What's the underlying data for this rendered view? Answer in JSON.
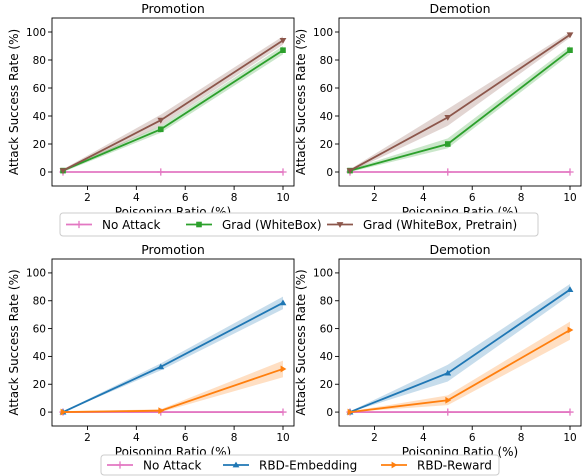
{
  "chart_data": [
    {
      "type": "line",
      "title": "Promotion",
      "xlabel": "Poisoning Ratio (%)",
      "ylabel": "Attack Success Rate (%)",
      "x": [
        1,
        5,
        10
      ],
      "xticks": [
        2,
        4,
        6,
        8,
        10
      ],
      "yticks": [
        0,
        20,
        40,
        60,
        80,
        100
      ],
      "xlim": [
        0.55,
        10.45
      ],
      "ylim": [
        -10,
        110
      ],
      "series": [
        {
          "name": "No Attack",
          "values": [
            0,
            0,
            0
          ],
          "band": [
            [
              0,
              0
            ],
            [
              0,
              0
            ],
            [
              0,
              0
            ]
          ],
          "color": "#e377c2",
          "marker": "plus"
        },
        {
          "name": "Grad (WhiteBox)",
          "values": [
            1,
            30.5,
            87
          ],
          "band": [
            [
              0,
              2
            ],
            [
              28,
              33
            ],
            [
              84,
              90
            ]
          ],
          "color": "#2ca02c",
          "marker": "square"
        },
        {
          "name": "Grad (WhiteBox, Pretrain)",
          "values": [
            1,
            37,
            94
          ],
          "band": [
            [
              0,
              2
            ],
            [
              33,
              41
            ],
            [
              91,
              97
            ]
          ],
          "color": "#8c564b",
          "marker": "tri-down"
        }
      ]
    },
    {
      "type": "line",
      "title": "Demotion",
      "xlabel": "Poisoning Ratio (%)",
      "ylabel": "Attack Success Rate (%)",
      "x": [
        1,
        5,
        10
      ],
      "xticks": [
        2,
        4,
        6,
        8,
        10
      ],
      "yticks": [
        0,
        20,
        40,
        60,
        80,
        100
      ],
      "xlim": [
        0.55,
        10.45
      ],
      "ylim": [
        -10,
        110
      ],
      "series": [
        {
          "name": "No Attack",
          "values": [
            0,
            0,
            0
          ],
          "band": [
            [
              0,
              0
            ],
            [
              0,
              0
            ],
            [
              0,
              0
            ]
          ],
          "color": "#e377c2",
          "marker": "plus"
        },
        {
          "name": "Grad (WhiteBox)",
          "values": [
            1,
            20,
            87
          ],
          "band": [
            [
              0,
              2
            ],
            [
              17,
              24
            ],
            [
              84,
              90
            ]
          ],
          "color": "#2ca02c",
          "marker": "square"
        },
        {
          "name": "Grad (WhiteBox, Pretrain)",
          "values": [
            1,
            39,
            98
          ],
          "band": [
            [
              0,
              2
            ],
            [
              33,
              45
            ],
            [
              96,
              100
            ]
          ],
          "color": "#8c564b",
          "marker": "tri-down"
        }
      ]
    },
    {
      "type": "line",
      "title": "Promotion",
      "xlabel": "Poisoning Ratio (%)",
      "ylabel": "Attack Success Rate (%)",
      "x": [
        1,
        5,
        10
      ],
      "xticks": [
        2,
        4,
        6,
        8,
        10
      ],
      "yticks": [
        0,
        20,
        40,
        60,
        80,
        100
      ],
      "xlim": [
        0.55,
        10.45
      ],
      "ylim": [
        -10,
        110
      ],
      "series": [
        {
          "name": "No Attack",
          "values": [
            0,
            0,
            0
          ],
          "band": [
            [
              0,
              0
            ],
            [
              0,
              0
            ],
            [
              0,
              0
            ]
          ],
          "color": "#e377c2",
          "marker": "plus"
        },
        {
          "name": "RBD-Embedding",
          "values": [
            0,
            32.5,
            78.5
          ],
          "band": [
            [
              0,
              0.5
            ],
            [
              30,
              35
            ],
            [
              74,
              83
            ]
          ],
          "color": "#1f77b4",
          "marker": "tri-up"
        },
        {
          "name": "RBD-Reward",
          "values": [
            0,
            1,
            31
          ],
          "band": [
            [
              0,
              0.5
            ],
            [
              0,
              2
            ],
            [
              25,
              37
            ]
          ],
          "color": "#ff7f0e",
          "marker": "tri-right"
        }
      ]
    },
    {
      "type": "line",
      "title": "Demotion",
      "xlabel": "Poisoning Ratio (%)",
      "ylabel": "Attack Success Rate (%)",
      "x": [
        1,
        5,
        10
      ],
      "xticks": [
        2,
        4,
        6,
        8,
        10
      ],
      "yticks": [
        0,
        20,
        40,
        60,
        80,
        100
      ],
      "xlim": [
        0.55,
        10.45
      ],
      "ylim": [
        -10,
        110
      ],
      "series": [
        {
          "name": "No Attack",
          "values": [
            0,
            0,
            0
          ],
          "band": [
            [
              0,
              0
            ],
            [
              0,
              0
            ],
            [
              0,
              0
            ]
          ],
          "color": "#e377c2",
          "marker": "plus"
        },
        {
          "name": "RBD-Embedding",
          "values": [
            0,
            28,
            88
          ],
          "band": [
            [
              0,
              0.5
            ],
            [
              22,
              34
            ],
            [
              84,
              92
            ]
          ],
          "color": "#1f77b4",
          "marker": "tri-up"
        },
        {
          "name": "RBD-Reward",
          "values": [
            0,
            8.5,
            59
          ],
          "band": [
            [
              0,
              0.5
            ],
            [
              5,
              12
            ],
            [
              52,
              65
            ]
          ],
          "color": "#ff7f0e",
          "marker": "tri-right"
        }
      ]
    }
  ],
  "legends": [
    {
      "entries": [
        {
          "label": "No Attack",
          "color": "#e377c2",
          "marker": "plus"
        },
        {
          "label": "Grad (WhiteBox)",
          "color": "#2ca02c",
          "marker": "square"
        },
        {
          "label": "Grad (WhiteBox, Pretrain)",
          "color": "#8c564b",
          "marker": "tri-down"
        }
      ]
    },
    {
      "entries": [
        {
          "label": "No Attack",
          "color": "#e377c2",
          "marker": "plus"
        },
        {
          "label": "RBD-Embedding",
          "color": "#1f77b4",
          "marker": "tri-up"
        },
        {
          "label": "RBD-Reward",
          "color": "#ff7f0e",
          "marker": "tri-right"
        }
      ]
    }
  ]
}
